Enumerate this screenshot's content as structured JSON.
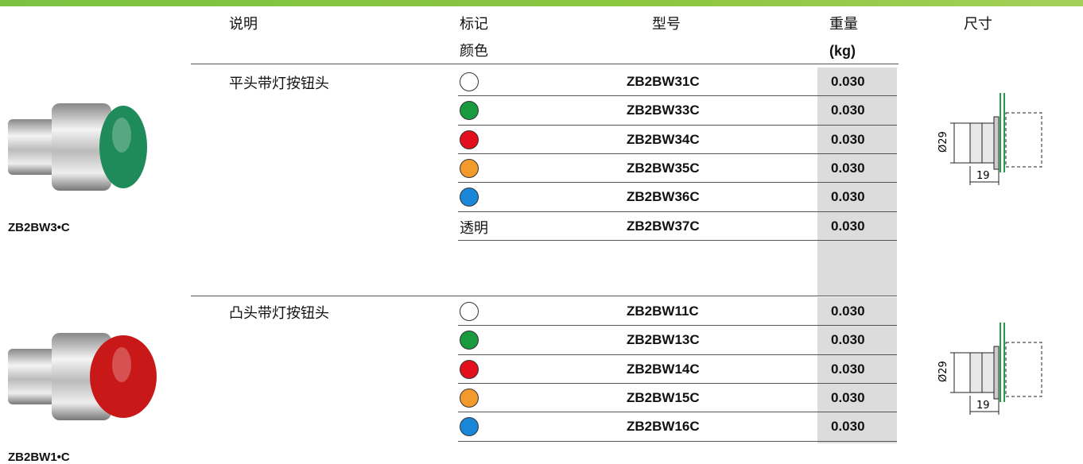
{
  "header": {
    "description": "说明",
    "color": [
      "标记",
      "颜色"
    ],
    "model": "型号",
    "weight": [
      "重量",
      "(kg)"
    ],
    "size": "尺寸"
  },
  "groups": [
    {
      "image_caption": "ZB2BW3•C",
      "description": "平头带灯按钮头",
      "cap_color": "#1f8a5a",
      "rows": [
        {
          "color": "#ffffff",
          "model": "ZB2BW31C",
          "weight": "0.030"
        },
        {
          "color": "#1a9a3f",
          "model": "ZB2BW33C",
          "weight": "0.030"
        },
        {
          "color": "#e2101c",
          "model": "ZB2BW34C",
          "weight": "0.030"
        },
        {
          "color": "#f39a2c",
          "model": "ZB2BW35C",
          "weight": "0.030"
        },
        {
          "color": "#1a86d8",
          "model": "ZB2BW36C",
          "weight": "0.030"
        },
        {
          "marking": "透明",
          "model": "ZB2BW37C",
          "weight": "0.030"
        }
      ],
      "dimensions": {
        "diameter": "Ø29",
        "length": "19"
      }
    },
    {
      "image_caption": "ZB2BW1•C",
      "description": "凸头带灯按钮头",
      "cap_color": "#c81818",
      "rows": [
        {
          "color": "#ffffff",
          "model": "ZB2BW11C",
          "weight": "0.030"
        },
        {
          "color": "#1a9a3f",
          "model": "ZB2BW13C",
          "weight": "0.030"
        },
        {
          "color": "#e2101c",
          "model": "ZB2BW14C",
          "weight": "0.030"
        },
        {
          "color": "#f39a2c",
          "model": "ZB2BW15C",
          "weight": "0.030"
        },
        {
          "color": "#1a86d8",
          "model": "ZB2BW16C",
          "weight": "0.030"
        }
      ],
      "dimensions": {
        "diameter": "Ø29",
        "length": "19"
      }
    }
  ]
}
